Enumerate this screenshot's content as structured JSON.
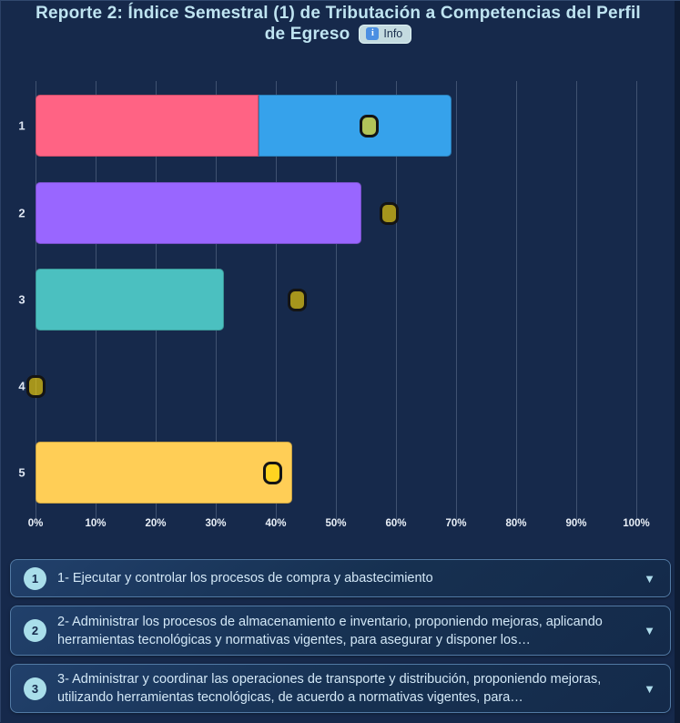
{
  "header": {
    "title_line1": "Reporte 2: Índice Semestral (1) de Tributación a Competencias del Perfil",
    "title_line2": "de Egreso",
    "info_button": {
      "label": "Info",
      "icon": "i"
    }
  },
  "chart_data": {
    "type": "bar",
    "orientation": "horizontal",
    "title": "",
    "xlabel": "",
    "ylabel": "",
    "xlim": [
      0,
      100
    ],
    "grid": true,
    "x_ticks": [
      "0%",
      "10%",
      "20%",
      "30%",
      "40%",
      "50%",
      "60%",
      "70%",
      "80%",
      "90%",
      "100%"
    ],
    "categories": [
      "1",
      "2",
      "3",
      "4",
      "5"
    ],
    "rows": [
      {
        "category": "1",
        "segments": [
          {
            "value": 37.1,
            "color": "#FF6384"
          },
          {
            "value": 32.1,
            "color": "#36A2EB"
          }
        ],
        "marker": 55.5
      },
      {
        "category": "2",
        "segments": [
          {
            "value": 54.2,
            "color": "#9966FF"
          }
        ],
        "marker": 58.8
      },
      {
        "category": "3",
        "segments": [
          {
            "value": 31.3,
            "color": "#4BC0C0"
          }
        ],
        "marker": 43.6
      },
      {
        "category": "4",
        "segments": [],
        "marker": 0
      },
      {
        "category": "5",
        "segments": [
          {
            "value": 42.8,
            "color": "#FFCE56"
          }
        ],
        "marker": 39.4
      }
    ],
    "marker_style": {
      "fill": "rgba(255,217,0,0.62)",
      "border": "#141414"
    },
    "legend_position": "none"
  },
  "accordions": [
    {
      "number": "1",
      "text": "1- Ejecutar y controlar los procesos de compra y abastecimiento"
    },
    {
      "number": "2",
      "text": "2- Administrar los procesos de almacenamiento e inventario, proponiendo mejoras, aplicando herramientas tecnológicas y normativas vigentes, para asegurar y disponer los…"
    },
    {
      "number": "3",
      "text": "3- Administrar y coordinar las operaciones de transporte y distribución, proponiendo mejoras, utilizando herramientas tecnológicas, de acuerdo a normativas vigentes, para…"
    }
  ],
  "ui": {
    "chevron": "▼"
  },
  "colors": {
    "background": "#16294B",
    "title_text": "#BFE4F1",
    "bar_red": "#FF6384",
    "bar_blue": "#36A2EB",
    "bar_purple": "#9966FF",
    "bar_teal": "#4BC0C0",
    "bar_yellow": "#FFCE56",
    "accordion_border": "#527AA4",
    "badge_bg": "#A9DEEA"
  }
}
